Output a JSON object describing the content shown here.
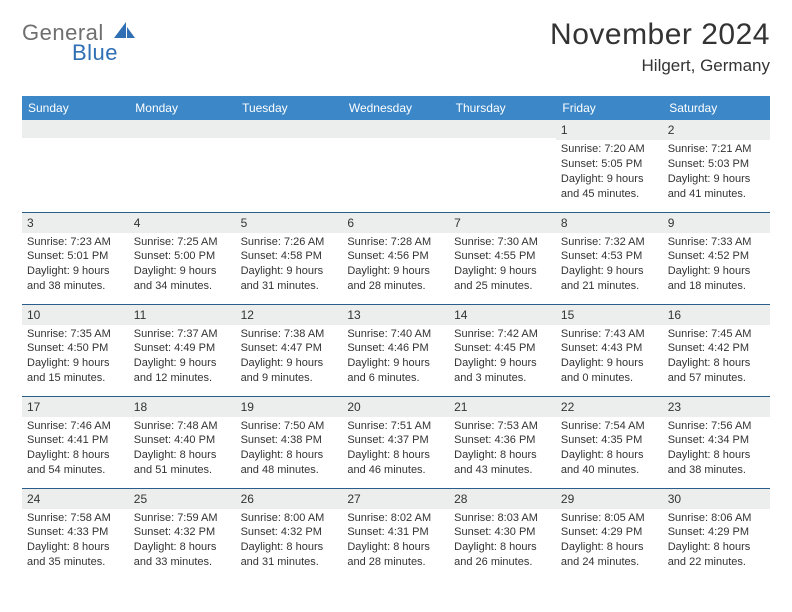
{
  "logo": {
    "word1": "General",
    "word2": "Blue"
  },
  "header": {
    "title": "November 2024",
    "location": "Hilgert, Germany"
  },
  "colors": {
    "header_bg": "#3b87c8",
    "header_text": "#ffffff",
    "row_divider": "#2a5e8a",
    "daynum_bg": "#eceded",
    "text": "#333333",
    "logo_gray": "#6f6f6f",
    "logo_blue": "#2f6fb3"
  },
  "weekdays": [
    "Sunday",
    "Monday",
    "Tuesday",
    "Wednesday",
    "Thursday",
    "Friday",
    "Saturday"
  ],
  "weeks": [
    [
      {
        "n": "",
        "sr": "",
        "ss": "",
        "dl": ""
      },
      {
        "n": "",
        "sr": "",
        "ss": "",
        "dl": ""
      },
      {
        "n": "",
        "sr": "",
        "ss": "",
        "dl": ""
      },
      {
        "n": "",
        "sr": "",
        "ss": "",
        "dl": ""
      },
      {
        "n": "",
        "sr": "",
        "ss": "",
        "dl": ""
      },
      {
        "n": "1",
        "sr": "Sunrise: 7:20 AM",
        "ss": "Sunset: 5:05 PM",
        "dl": "Daylight: 9 hours and 45 minutes."
      },
      {
        "n": "2",
        "sr": "Sunrise: 7:21 AM",
        "ss": "Sunset: 5:03 PM",
        "dl": "Daylight: 9 hours and 41 minutes."
      }
    ],
    [
      {
        "n": "3",
        "sr": "Sunrise: 7:23 AM",
        "ss": "Sunset: 5:01 PM",
        "dl": "Daylight: 9 hours and 38 minutes."
      },
      {
        "n": "4",
        "sr": "Sunrise: 7:25 AM",
        "ss": "Sunset: 5:00 PM",
        "dl": "Daylight: 9 hours and 34 minutes."
      },
      {
        "n": "5",
        "sr": "Sunrise: 7:26 AM",
        "ss": "Sunset: 4:58 PM",
        "dl": "Daylight: 9 hours and 31 minutes."
      },
      {
        "n": "6",
        "sr": "Sunrise: 7:28 AM",
        "ss": "Sunset: 4:56 PM",
        "dl": "Daylight: 9 hours and 28 minutes."
      },
      {
        "n": "7",
        "sr": "Sunrise: 7:30 AM",
        "ss": "Sunset: 4:55 PM",
        "dl": "Daylight: 9 hours and 25 minutes."
      },
      {
        "n": "8",
        "sr": "Sunrise: 7:32 AM",
        "ss": "Sunset: 4:53 PM",
        "dl": "Daylight: 9 hours and 21 minutes."
      },
      {
        "n": "9",
        "sr": "Sunrise: 7:33 AM",
        "ss": "Sunset: 4:52 PM",
        "dl": "Daylight: 9 hours and 18 minutes."
      }
    ],
    [
      {
        "n": "10",
        "sr": "Sunrise: 7:35 AM",
        "ss": "Sunset: 4:50 PM",
        "dl": "Daylight: 9 hours and 15 minutes."
      },
      {
        "n": "11",
        "sr": "Sunrise: 7:37 AM",
        "ss": "Sunset: 4:49 PM",
        "dl": "Daylight: 9 hours and 12 minutes."
      },
      {
        "n": "12",
        "sr": "Sunrise: 7:38 AM",
        "ss": "Sunset: 4:47 PM",
        "dl": "Daylight: 9 hours and 9 minutes."
      },
      {
        "n": "13",
        "sr": "Sunrise: 7:40 AM",
        "ss": "Sunset: 4:46 PM",
        "dl": "Daylight: 9 hours and 6 minutes."
      },
      {
        "n": "14",
        "sr": "Sunrise: 7:42 AM",
        "ss": "Sunset: 4:45 PM",
        "dl": "Daylight: 9 hours and 3 minutes."
      },
      {
        "n": "15",
        "sr": "Sunrise: 7:43 AM",
        "ss": "Sunset: 4:43 PM",
        "dl": "Daylight: 9 hours and 0 minutes."
      },
      {
        "n": "16",
        "sr": "Sunrise: 7:45 AM",
        "ss": "Sunset: 4:42 PM",
        "dl": "Daylight: 8 hours and 57 minutes."
      }
    ],
    [
      {
        "n": "17",
        "sr": "Sunrise: 7:46 AM",
        "ss": "Sunset: 4:41 PM",
        "dl": "Daylight: 8 hours and 54 minutes."
      },
      {
        "n": "18",
        "sr": "Sunrise: 7:48 AM",
        "ss": "Sunset: 4:40 PM",
        "dl": "Daylight: 8 hours and 51 minutes."
      },
      {
        "n": "19",
        "sr": "Sunrise: 7:50 AM",
        "ss": "Sunset: 4:38 PM",
        "dl": "Daylight: 8 hours and 48 minutes."
      },
      {
        "n": "20",
        "sr": "Sunrise: 7:51 AM",
        "ss": "Sunset: 4:37 PM",
        "dl": "Daylight: 8 hours and 46 minutes."
      },
      {
        "n": "21",
        "sr": "Sunrise: 7:53 AM",
        "ss": "Sunset: 4:36 PM",
        "dl": "Daylight: 8 hours and 43 minutes."
      },
      {
        "n": "22",
        "sr": "Sunrise: 7:54 AM",
        "ss": "Sunset: 4:35 PM",
        "dl": "Daylight: 8 hours and 40 minutes."
      },
      {
        "n": "23",
        "sr": "Sunrise: 7:56 AM",
        "ss": "Sunset: 4:34 PM",
        "dl": "Daylight: 8 hours and 38 minutes."
      }
    ],
    [
      {
        "n": "24",
        "sr": "Sunrise: 7:58 AM",
        "ss": "Sunset: 4:33 PM",
        "dl": "Daylight: 8 hours and 35 minutes."
      },
      {
        "n": "25",
        "sr": "Sunrise: 7:59 AM",
        "ss": "Sunset: 4:32 PM",
        "dl": "Daylight: 8 hours and 33 minutes."
      },
      {
        "n": "26",
        "sr": "Sunrise: 8:00 AM",
        "ss": "Sunset: 4:32 PM",
        "dl": "Daylight: 8 hours and 31 minutes."
      },
      {
        "n": "27",
        "sr": "Sunrise: 8:02 AM",
        "ss": "Sunset: 4:31 PM",
        "dl": "Daylight: 8 hours and 28 minutes."
      },
      {
        "n": "28",
        "sr": "Sunrise: 8:03 AM",
        "ss": "Sunset: 4:30 PM",
        "dl": "Daylight: 8 hours and 26 minutes."
      },
      {
        "n": "29",
        "sr": "Sunrise: 8:05 AM",
        "ss": "Sunset: 4:29 PM",
        "dl": "Daylight: 8 hours and 24 minutes."
      },
      {
        "n": "30",
        "sr": "Sunrise: 8:06 AM",
        "ss": "Sunset: 4:29 PM",
        "dl": "Daylight: 8 hours and 22 minutes."
      }
    ]
  ]
}
